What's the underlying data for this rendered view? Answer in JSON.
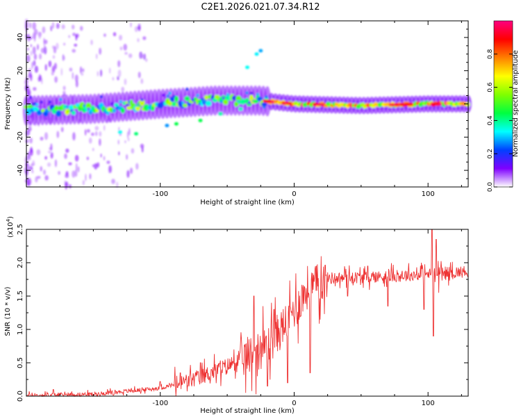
{
  "title": "C2E1.2026.021.07.34.R12",
  "chart_data": [
    {
      "type": "heatmap",
      "xlabel": "Height of straight line (km)",
      "ylabel": "Frequency (Hz)",
      "xlim": [
        -200,
        130
      ],
      "ylim": [
        -50,
        50
      ],
      "xticks": [
        -100,
        0,
        100
      ],
      "yticks": [
        -40,
        -20,
        0,
        20,
        40
      ],
      "colorbar": {
        "label": "Normalized spectral amplitude",
        "range": [
          0,
          1
        ],
        "ticks": [
          "0.0",
          "0.2",
          "0.4",
          "0.6",
          "0.8"
        ],
        "colors": [
          "#ffffff",
          "#7f00ff",
          "#0040ff",
          "#00ffff",
          "#00ff40",
          "#80ff00",
          "#ffff00",
          "#ff8000",
          "#ff0000",
          "#ff0080"
        ]
      },
      "ridge": [
        {
          "x": -200,
          "y": -4
        },
        {
          "x": -150,
          "y": -3
        },
        {
          "x": -100,
          "y": 0
        },
        {
          "x": -60,
          "y": 2
        },
        {
          "x": -25,
          "y": 2
        },
        {
          "x": 0,
          "y": 0
        },
        {
          "x": 50,
          "y": -1
        },
        {
          "x": 100,
          "y": 0
        },
        {
          "x": 130,
          "y": 0
        }
      ],
      "scatter_track": [
        {
          "x": -130,
          "y": -17
        },
        {
          "x": -118,
          "y": -18
        },
        {
          "x": -95,
          "y": -13
        },
        {
          "x": -88,
          "y": -12
        },
        {
          "x": -70,
          "y": -10
        },
        {
          "x": -55,
          "y": -6
        },
        {
          "x": -40,
          "y": -3
        },
        {
          "x": -35,
          "y": 22
        },
        {
          "x": -28,
          "y": 30
        },
        {
          "x": -25,
          "y": 32
        }
      ]
    },
    {
      "type": "line",
      "xlabel": "Height of straight line (km)",
      "ylabel": "SNR (10 * v/v)",
      "y_multiplier": "(x10",
      "y_multiplier_exp": "4",
      "y_multiplier_close": ")",
      "xlim": [
        -200,
        130
      ],
      "ylim": [
        0,
        2.5
      ],
      "xticks": [
        -100,
        0,
        100
      ],
      "yticks": [
        "0.0",
        "0.5",
        "1.0",
        "1.5",
        "2.0",
        "2.5"
      ],
      "color": "#ee3333",
      "trend": [
        {
          "x": -200,
          "y": 0.01
        },
        {
          "x": -150,
          "y": 0.03
        },
        {
          "x": -100,
          "y": 0.12
        },
        {
          "x": -75,
          "y": 0.25
        },
        {
          "x": -50,
          "y": 0.45
        },
        {
          "x": -35,
          "y": 0.6
        },
        {
          "x": -20,
          "y": 0.75
        },
        {
          "x": -10,
          "y": 1.0
        },
        {
          "x": 0,
          "y": 1.3
        },
        {
          "x": 10,
          "y": 1.6
        },
        {
          "x": 25,
          "y": 1.77
        },
        {
          "x": 50,
          "y": 1.78
        },
        {
          "x": 75,
          "y": 1.8
        },
        {
          "x": 100,
          "y": 1.83
        },
        {
          "x": 130,
          "y": 1.87
        }
      ],
      "spikes": [
        {
          "x": -180,
          "y": 0.1
        },
        {
          "x": -100,
          "y": 0.22
        },
        {
          "x": -85,
          "y": 0.35
        },
        {
          "x": -70,
          "y": 0.5
        },
        {
          "x": -45,
          "y": 0.7
        },
        {
          "x": -30,
          "y": 1.5
        },
        {
          "x": -20,
          "y": 0.15
        },
        {
          "x": -15,
          "y": 1.3
        },
        {
          "x": -5,
          "y": 0.2
        },
        {
          "x": 5,
          "y": 1.2
        },
        {
          "x": 10,
          "y": 1.95
        },
        {
          "x": 12,
          "y": 0.35
        },
        {
          "x": 40,
          "y": 1.5
        },
        {
          "x": 55,
          "y": 1.95
        },
        {
          "x": 70,
          "y": 1.35
        },
        {
          "x": 95,
          "y": 2.0
        },
        {
          "x": 97,
          "y": 1.3
        },
        {
          "x": 103,
          "y": 2.55
        },
        {
          "x": 104,
          "y": 0.9
        },
        {
          "x": 106,
          "y": 2.35
        },
        {
          "x": 108,
          "y": 1.55
        }
      ]
    }
  ]
}
